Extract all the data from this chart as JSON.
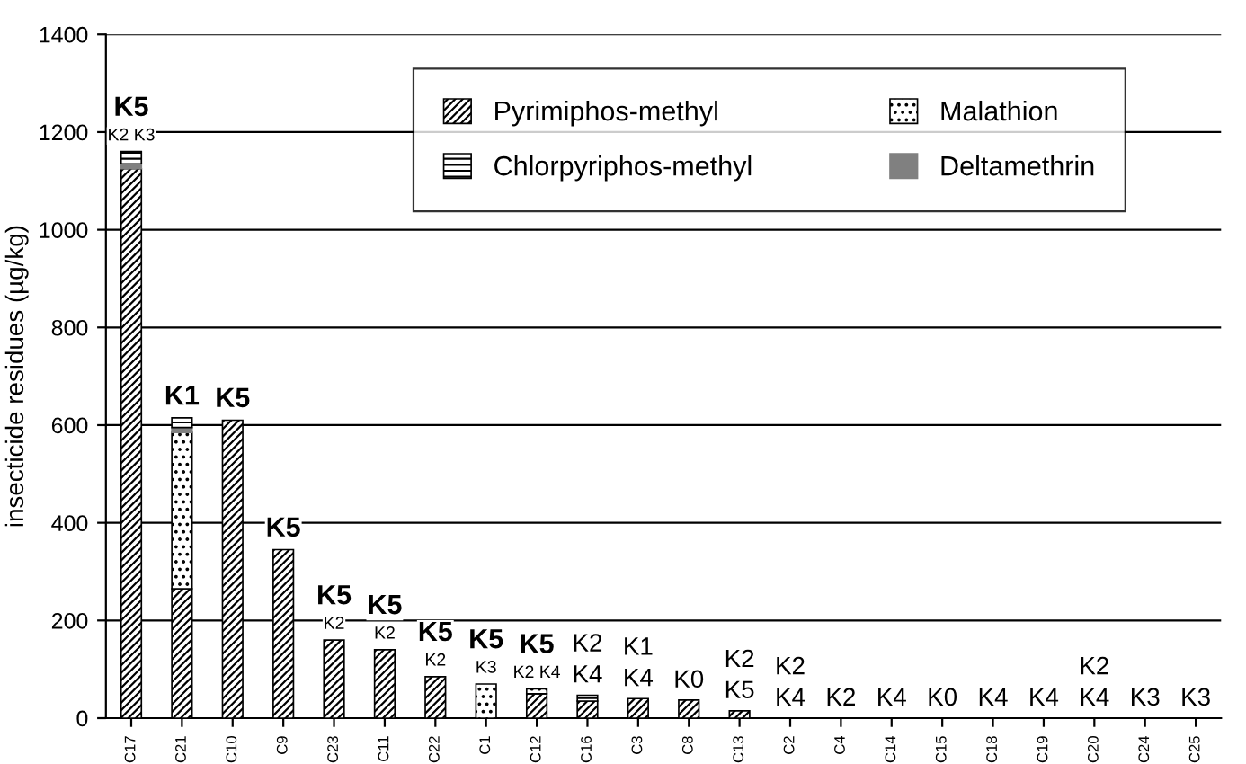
{
  "chart_data": {
    "type": "bar",
    "stacked": true,
    "ylabel": "insecticide residues (µg/kg)",
    "categories": [
      "C17",
      "C21",
      "C10",
      "C9",
      "C23",
      "C11",
      "C22",
      "C1",
      "C12",
      "C16",
      "C3",
      "C8",
      "C13",
      "C2",
      "C4",
      "C14",
      "C15",
      "C18",
      "C19",
      "C20",
      "C24",
      "C25"
    ],
    "series": [
      {
        "name": "Pyrimiphos-methyl",
        "color": "#000000",
        "values": [
          1125,
          265,
          610,
          345,
          160,
          140,
          85,
          0,
          50,
          35,
          40,
          37,
          15,
          0,
          0,
          0,
          0,
          0,
          0,
          0,
          0,
          0
        ]
      },
      {
        "name": "Malathion",
        "color": "#000000",
        "values": [
          0,
          320,
          0,
          0,
          0,
          0,
          0,
          70,
          10,
          0,
          0,
          0,
          0,
          0,
          0,
          0,
          0,
          0,
          0,
          0,
          0,
          0
        ]
      },
      {
        "name": "Deltamethrin",
        "color": "#808080",
        "values": [
          10,
          10,
          0,
          0,
          0,
          0,
          0,
          0,
          0,
          0,
          0,
          0,
          0,
          0,
          0,
          0,
          0,
          0,
          0,
          0,
          0,
          0
        ]
      },
      {
        "name": "Chlorpyriphos-methyl",
        "color": "#000000",
        "values": [
          25,
          20,
          0,
          0,
          0,
          0,
          0,
          0,
          0,
          12,
          0,
          0,
          0,
          0,
          0,
          0,
          0,
          0,
          0,
          0,
          0,
          0
        ]
      }
    ],
    "ylim": [
      0,
      1400
    ],
    "yticks": [
      0,
      200,
      400,
      600,
      800,
      1000,
      1200,
      1400
    ],
    "grid": "y",
    "legend": "top",
    "annotations": [
      {
        "text": "K5",
        "x": "C17",
        "y": 1160
      },
      {
        "text": "K2 K3",
        "x": "C17",
        "y": 1160
      },
      {
        "text": "K1",
        "x": "C21",
        "y": 615
      },
      {
        "text": "K5",
        "x": "C10",
        "y": 610
      },
      {
        "text": "K5",
        "x": "C9",
        "y": 345
      },
      {
        "text": "K5",
        "x": "C23",
        "y": 160
      },
      {
        "text": "K2",
        "x": "C23",
        "y": 160
      },
      {
        "text": "K5",
        "x": "C11",
        "y": 140
      },
      {
        "text": "K2",
        "x": "C11",
        "y": 140
      },
      {
        "text": "K5",
        "x": "C22",
        "y": 85
      },
      {
        "text": "K2",
        "x": "C22",
        "y": 85
      },
      {
        "text": "K5",
        "x": "C1",
        "y": 70
      },
      {
        "text": "K3",
        "x": "C1",
        "y": 70
      },
      {
        "text": "K5",
        "x": "C12",
        "y": 60
      },
      {
        "text": "K2 K4",
        "x": "C12",
        "y": 60
      },
      {
        "text": "K2",
        "x": "C16",
        "y": 47
      },
      {
        "text": "K4",
        "x": "C16",
        "y": 47
      },
      {
        "text": "K1",
        "x": "C3",
        "y": 40
      },
      {
        "text": "K4",
        "x": "C3",
        "y": 40
      },
      {
        "text": "K0",
        "x": "C8",
        "y": 37
      },
      {
        "text": "K2",
        "x": "C13",
        "y": 15
      },
      {
        "text": "K5",
        "x": "C13",
        "y": 15
      },
      {
        "text": "K2",
        "x": "C2",
        "y": 0
      },
      {
        "text": "K4",
        "x": "C2",
        "y": 0
      },
      {
        "text": "K2",
        "x": "C4",
        "y": 0
      },
      {
        "text": "K4",
        "x": "C14",
        "y": 0
      },
      {
        "text": "K0",
        "x": "C15",
        "y": 0
      },
      {
        "text": "K4",
        "x": "C18",
        "y": 0
      },
      {
        "text": "K4",
        "x": "C19",
        "y": 0
      },
      {
        "text": "K2",
        "x": "C20",
        "y": 0
      },
      {
        "text": "K4",
        "x": "C20",
        "y": 0
      },
      {
        "text": "K3",
        "x": "C24",
        "y": 0
      },
      {
        "text": "K3",
        "x": "C25",
        "y": 0
      }
    ]
  }
}
